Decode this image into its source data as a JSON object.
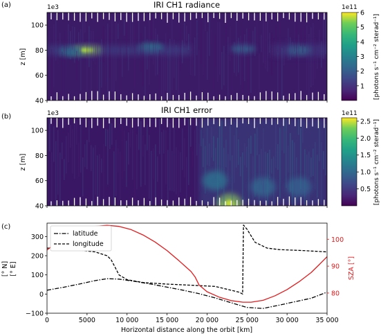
{
  "chart_data": [
    {
      "type": "heatmap",
      "panel_label": "(a)",
      "title": "IRI CH1 radiance",
      "ylabel": "z [m]",
      "y_offset_label": "1e3",
      "ylim": [
        40,
        110
      ],
      "yticks": [
        "40",
        "60",
        "80",
        "100"
      ],
      "colorbar": {
        "label": "[photons s⁻¹ cm⁻² sterad⁻¹]",
        "offset_label": "1e11",
        "range": [
          0,
          6
        ],
        "ticks": [
          "1",
          "2",
          "3",
          "4",
          "5",
          "6"
        ],
        "colormap": "viridis"
      },
      "features": [
        {
          "x": 5000,
          "z": 80,
          "value": 5.5
        },
        {
          "x": 3000,
          "z": 79,
          "value": 3.2
        },
        {
          "x": 13000,
          "z": 82,
          "value": 3.0
        },
        {
          "x": 31500,
          "z": 80,
          "value": 2.8
        },
        {
          "x": 24500,
          "z": 81,
          "value": 2.0
        }
      ]
    },
    {
      "type": "heatmap",
      "panel_label": "(b)",
      "title": "IRI CH1 error",
      "ylabel": "z [m]",
      "y_offset_label": "1e3",
      "ylim": [
        40,
        110
      ],
      "yticks": [
        "40",
        "60",
        "80",
        "100"
      ],
      "colorbar": {
        "label": "[photons s⁻¹ cm⁻² sterad⁻¹]",
        "offset_label": "1e11",
        "range": [
          0,
          2.6
        ],
        "ticks": [
          "0.5",
          "1.0",
          "1.5",
          "2.0",
          "2.5"
        ],
        "colormap": "viridis"
      },
      "features": [
        {
          "x": 22800,
          "z": 42,
          "value": 2.4
        },
        {
          "x": 21000,
          "z": 60,
          "value": 1.2
        },
        {
          "x": 27000,
          "z": 55,
          "value": 1.0
        },
        {
          "x": 31500,
          "z": 55,
          "value": 0.9
        }
      ]
    },
    {
      "type": "line",
      "panel_label": "(c)",
      "xlabel": "Horizontal distance along the orbit [km]",
      "ylabel": "[° N]\n[° E]",
      "y2label": "SZA [°]",
      "xlim": [
        0,
        35000
      ],
      "ylim": [
        -100,
        370
      ],
      "y2lim": [
        72.5,
        106
      ],
      "xticks": [
        "0",
        "5000",
        "10 000",
        "15 000",
        "20 000",
        "25 000",
        "30 000",
        "35 000"
      ],
      "yticks": [
        "−100",
        "0",
        "100",
        "200",
        "300"
      ],
      "y2ticks": [
        "80",
        "90",
        "100"
      ],
      "legend_position": "upper-left",
      "colors": {
        "latitude": "#000000",
        "longitude": "#000000",
        "sza": "#e41a1c"
      },
      "series": [
        {
          "name": "latitude",
          "style": "dashdot",
          "axis": "left",
          "x": [
            0,
            2000,
            4000,
            6000,
            7500,
            9000,
            11000,
            13000,
            15000,
            17000,
            19000,
            21000,
            23000,
            25000,
            27000,
            29000,
            31000,
            33000,
            35000
          ],
          "y": [
            20,
            35,
            52,
            70,
            80,
            78,
            66,
            52,
            36,
            20,
            2,
            -20,
            -45,
            -70,
            -75,
            -58,
            -40,
            -22,
            10
          ]
        },
        {
          "name": "longitude",
          "style": "dashed",
          "axis": "left",
          "x": [
            0,
            3000,
            6000,
            7500,
            8000,
            8500,
            9000,
            10000,
            12000,
            15000,
            18000,
            21000,
            24000,
            24450,
            24550,
            25000,
            26000,
            27500,
            29000,
            32000,
            35000
          ],
          "y": [
            240,
            234,
            220,
            200,
            180,
            140,
            100,
            75,
            60,
            52,
            46,
            40,
            10,
            0,
            360,
            338,
            270,
            240,
            232,
            227,
            220
          ]
        },
        {
          "name": "SZA",
          "style": "solid",
          "axis": "right",
          "x": [
            0,
            1500,
            3000,
            4500,
            6000,
            7500,
            9000,
            10500,
            12000,
            13500,
            15000,
            16500,
            18000,
            18500,
            19000,
            20000,
            21500,
            23000,
            24500,
            25500,
            27000,
            28500,
            30000,
            31500,
            33000,
            34000,
            35000
          ],
          "y": [
            96,
            99.5,
            102,
            103.8,
            104.8,
            105.2,
            104.8,
            103.6,
            101.6,
            99,
            95.8,
            92,
            88,
            86,
            83,
            80.5,
            78.5,
            77.2,
            76.6,
            76.6,
            77.3,
            79,
            81.3,
            84.2,
            87.6,
            90.5,
            93.5
          ]
        }
      ]
    }
  ]
}
